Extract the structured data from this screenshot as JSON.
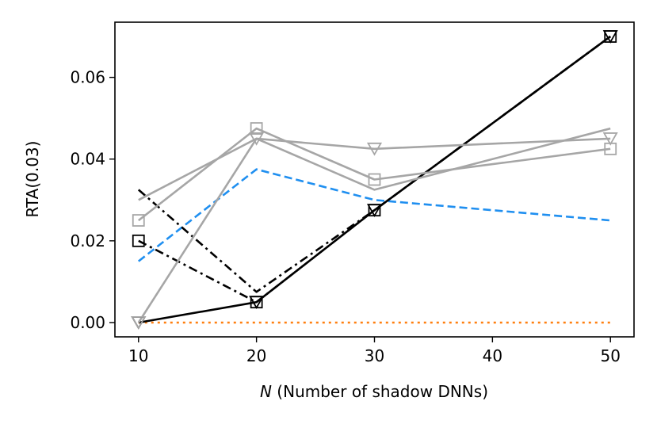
{
  "chart_data": {
    "type": "line",
    "xlabel_var": "N",
    "xlabel_rest": " (Number of shadow DNNs)",
    "ylabel": "RTA(0.03)",
    "xlim": [
      8,
      52
    ],
    "ylim": [
      -0.0035,
      0.0735
    ],
    "xticks": [
      10,
      20,
      30,
      40,
      50
    ],
    "yticks": [
      0.0,
      0.02,
      0.04,
      0.06
    ],
    "ytick_labels": [
      "0.00",
      "0.02",
      "0.04",
      "0.06"
    ],
    "grid": false,
    "series": [
      {
        "x": [
          10,
          20,
          30,
          50
        ],
        "y": [
          0.0,
          0.0,
          0.0,
          0.0
        ],
        "color": "#ff7f0e",
        "dash": "dotted",
        "marker": "none"
      },
      {
        "x": [
          10,
          20,
          30,
          50
        ],
        "y": [
          0.015,
          0.0375,
          0.03,
          0.025
        ],
        "color": "#1f8ff0",
        "dash": "dashed",
        "marker": "none"
      },
      {
        "x": [
          10,
          20,
          30,
          50
        ],
        "y": [
          0.0325,
          0.0075,
          0.0275,
          0.07
        ],
        "color": "#000000",
        "dash": "dashdot",
        "marker": "none"
      },
      {
        "x": [
          10,
          20,
          30,
          50
        ],
        "y": [
          0.02,
          0.005,
          0.0275,
          0.07
        ],
        "color": "#000000",
        "dash": "dashdot",
        "marker": "square"
      },
      {
        "x": [
          10,
          20,
          30,
          50
        ],
        "y": [
          0.0,
          0.005,
          0.0275,
          0.07
        ],
        "color": "#000000",
        "dash": "solid",
        "marker": "triangle-down"
      },
      {
        "x": [
          10,
          20,
          30,
          50
        ],
        "y": [
          0.03,
          0.045,
          0.0325,
          0.0475
        ],
        "color": "#a6a6a6",
        "dash": "solid",
        "marker": "none"
      },
      {
        "x": [
          10,
          20,
          30,
          50
        ],
        "y": [
          0.025,
          0.0475,
          0.035,
          0.0425
        ],
        "color": "#a6a6a6",
        "dash": "solid",
        "marker": "square"
      },
      {
        "x": [
          10,
          20,
          30,
          50
        ],
        "y": [
          0.0,
          0.045,
          0.0425,
          0.045
        ],
        "color": "#a6a6a6",
        "dash": "solid",
        "marker": "triangle-down"
      }
    ]
  }
}
